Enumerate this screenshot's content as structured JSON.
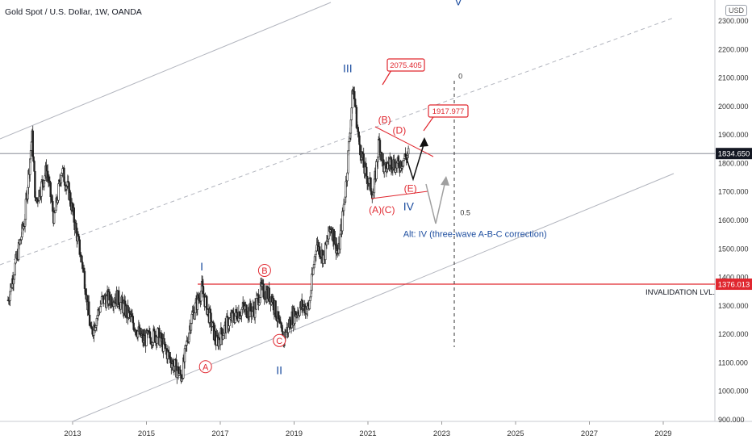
{
  "header": {
    "symbol_title": "Gold Spot / U.S. Dollar, 1W, OANDA",
    "currency_badge": "USD"
  },
  "colors": {
    "candles": "#222222",
    "channel": "#b2b5be",
    "red": "#e0272f",
    "blue": "#1f4fa0",
    "black": "#111111",
    "gray_arrow": "#a0a0a0"
  },
  "chart_data": {
    "type": "candlestick",
    "ylim": [
      880,
      2380
    ],
    "xlim": [
      2011.25,
      2029.9
    ],
    "y_ticks": [
      "900.000",
      "1000.000",
      "1100.000",
      "1200.000",
      "1300.000",
      "1400.000",
      "1500.000",
      "1600.000",
      "1700.000",
      "1800.000",
      "1900.000",
      "2000.000",
      "2100.000",
      "2200.000",
      "2300.000"
    ],
    "x_ticks": [
      "2013",
      "2015",
      "2017",
      "2019",
      "2021",
      "2023",
      "2025",
      "2027",
      "2029"
    ],
    "series": [
      {
        "approx_path": [
          [
            2011.25,
            1320
          ],
          [
            2011.7,
            1600
          ],
          [
            2011.9,
            1900
          ],
          [
            2012.0,
            1660
          ],
          [
            2012.3,
            1780
          ],
          [
            2012.5,
            1600
          ],
          [
            2012.7,
            1780
          ],
          [
            2012.9,
            1700
          ],
          [
            2013.3,
            1420
          ],
          [
            2013.5,
            1200
          ],
          [
            2013.8,
            1320
          ],
          [
            2014.2,
            1330
          ],
          [
            2014.6,
            1250
          ],
          [
            2014.9,
            1180
          ],
          [
            2015.3,
            1200
          ],
          [
            2015.7,
            1100
          ],
          [
            2015.95,
            1050
          ],
          [
            2016.2,
            1250
          ],
          [
            2016.5,
            1360
          ],
          [
            2016.9,
            1170
          ],
          [
            2017.2,
            1240
          ],
          [
            2017.6,
            1290
          ],
          [
            2017.9,
            1280
          ],
          [
            2018.1,
            1355
          ],
          [
            2018.4,
            1330
          ],
          [
            2018.7,
            1180
          ],
          [
            2018.95,
            1260
          ],
          [
            2019.2,
            1300
          ],
          [
            2019.4,
            1290
          ],
          [
            2019.6,
            1520
          ],
          [
            2019.8,
            1470
          ],
          [
            2020.0,
            1580
          ],
          [
            2020.2,
            1480
          ],
          [
            2020.4,
            1720
          ],
          [
            2020.6,
            2070
          ],
          [
            2020.75,
            1880
          ],
          [
            2020.9,
            1780
          ],
          [
            2021.15,
            1690
          ],
          [
            2021.3,
            1880
          ],
          [
            2021.45,
            1770
          ],
          [
            2021.6,
            1810
          ],
          [
            2021.8,
            1790
          ],
          [
            2022.0,
            1820
          ],
          [
            2022.1,
            1834
          ]
        ],
        "last_price": "1834.650"
      }
    ],
    "price_labels": [
      {
        "label": "1834.650",
        "value": 1834.65
      },
      {
        "label": "1376.013",
        "value": 1376.013
      }
    ],
    "horizontal_lines": [
      {
        "name": "current-price-line",
        "value": 1834.65
      },
      {
        "name": "invalidation-line",
        "value": 1376.013,
        "label": "INVALIDATION LVL."
      }
    ],
    "target_callouts": [
      {
        "label": "2075.405",
        "value": 2075.405
      },
      {
        "label": "1917.977",
        "value": 1917.977
      }
    ],
    "wave_labels_blue": [
      {
        "text": "I",
        "x": 2016.5,
        "y": 1425
      },
      {
        "text": "II",
        "x": 2018.6,
        "y": 1060
      },
      {
        "text": "III",
        "x": 2020.45,
        "y": 2120
      },
      {
        "text": "IV",
        "x": 2022.1,
        "y": 1635
      },
      {
        "text": "V",
        "x": 2023.45,
        "y": 2355
      }
    ],
    "wave_labels_red_circled": [
      {
        "text": "A",
        "x": 2016.6,
        "y": 1075
      },
      {
        "text": "B",
        "x": 2018.2,
        "y": 1413
      },
      {
        "text": "C",
        "x": 2018.6,
        "y": 1167
      }
    ],
    "wave_labels_red": [
      {
        "text": "(A)",
        "x": 2021.2,
        "y": 1626
      },
      {
        "text": "(B)",
        "x": 2021.45,
        "y": 1942
      },
      {
        "text": "(C)",
        "x": 2021.55,
        "y": 1626
      },
      {
        "text": "(D)",
        "x": 2021.85,
        "y": 1905
      },
      {
        "text": "(E)",
        "x": 2022.15,
        "y": 1700
      }
    ],
    "fib_labels": [
      {
        "text": "0",
        "x": 2023.45,
        "y": 2098
      },
      {
        "text": "0.5",
        "x": 2023.5,
        "y": 1619
      }
    ],
    "annotation": {
      "text": "Alt: IV (three-wave A-B-C correction)",
      "x": 2023.9,
      "y": 1542
    }
  }
}
